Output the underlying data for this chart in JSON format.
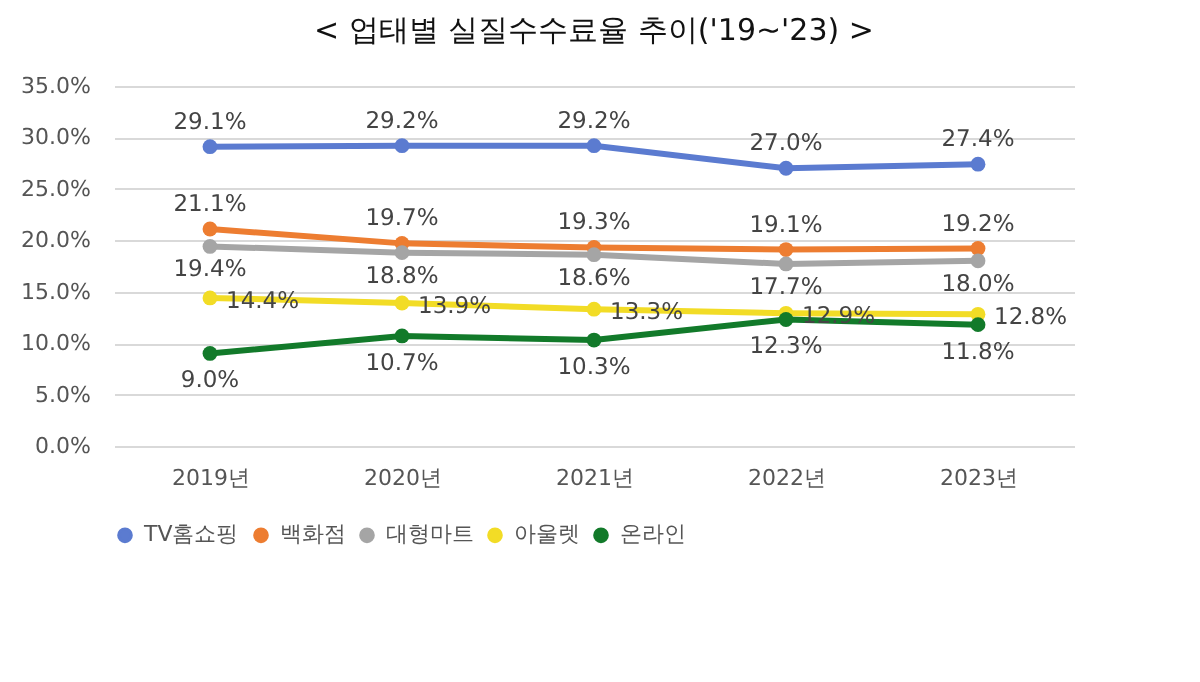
{
  "chart_data": {
    "type": "line",
    "title": "<  업태별  실질수수료율  추이('19~'23)  >",
    "categories": [
      "2019년",
      "2020년",
      "2021년",
      "2022년",
      "2023년"
    ],
    "series": [
      {
        "name": "TV홈쇼핑",
        "color": "#5b7bd0",
        "values": [
          29.1,
          29.2,
          29.2,
          27.0,
          27.4
        ],
        "value_labels": [
          "29.1%",
          "29.2%",
          "29.2%",
          "27.0%",
          "27.4%"
        ]
      },
      {
        "name": "백화점",
        "color": "#ed7d31",
        "values": [
          21.1,
          19.7,
          19.3,
          19.1,
          19.2
        ],
        "value_labels": [
          "21.1%",
          "19.7%",
          "19.3%",
          "19.1%",
          "19.2%"
        ]
      },
      {
        "name": "대형마트",
        "color": "#a5a5a5",
        "values": [
          19.4,
          18.8,
          18.6,
          17.7,
          18.0
        ],
        "value_labels": [
          "19.4%",
          "18.8%",
          "18.6%",
          "17.7%",
          "18.0%"
        ]
      },
      {
        "name": "아울렛",
        "color": "#f2dc26",
        "values": [
          14.4,
          13.9,
          13.3,
          12.9,
          12.8
        ],
        "value_labels": [
          "14.4%",
          "13.9%",
          "13.3%",
          "12.9%",
          "12.8%"
        ]
      },
      {
        "name": "온라인",
        "color": "#127a2a",
        "values": [
          9.0,
          10.7,
          10.3,
          12.3,
          11.8
        ],
        "value_labels": [
          "9.0%",
          "10.7%",
          "10.3%",
          "12.3%",
          "11.8%"
        ]
      }
    ],
    "ylim": [
      0,
      35
    ],
    "yticks": [
      {
        "value": 0,
        "label": "0.0%"
      },
      {
        "value": 5,
        "label": "5.0%"
      },
      {
        "value": 10,
        "label": "10.0%"
      },
      {
        "value": 15,
        "label": "15.0%"
      },
      {
        "value": 20,
        "label": "20.0%"
      },
      {
        "value": 25,
        "label": "25.0%"
      },
      {
        "value": 30,
        "label": "30.0%"
      },
      {
        "value": 35,
        "label": "35.0%"
      }
    ],
    "grid": "y",
    "legend": "bottom",
    "marker": "circle",
    "line_style": "solid"
  }
}
